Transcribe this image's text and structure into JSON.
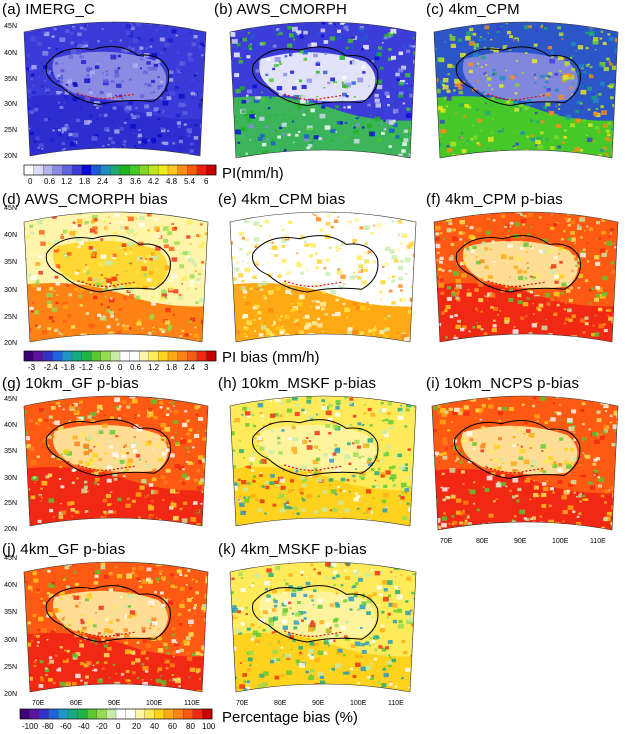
{
  "panels": [
    {
      "label": "(a) IMERG_C",
      "scheme": "pi_a"
    },
    {
      "label": "(b) AWS_CMORPH",
      "scheme": "pi_b"
    },
    {
      "label": "(c) 4km_CPM",
      "scheme": "pi_c"
    },
    {
      "label": "(d) AWS_CMORPH bias",
      "scheme": "bias_d"
    },
    {
      "label": "(e) 4km_CPM bias",
      "scheme": "bias_e"
    },
    {
      "label": "(f) 4km_CPM p-bias",
      "scheme": "pbias_red"
    },
    {
      "label": "(g) 10km_GF p-bias",
      "scheme": "pbias_red"
    },
    {
      "label": "(h) 10km_MSKF p-bias",
      "scheme": "pbias_mix"
    },
    {
      "label": "(i) 10km_NCPS p-bias",
      "scheme": "pbias_red"
    },
    {
      "label": "(j) 4km_GF p-bias",
      "scheme": "pbias_red"
    },
    {
      "label": "(k) 4km_MSKF p-bias",
      "scheme": "pbias_mix"
    }
  ],
  "lat_ticks": [
    "45N",
    "40N",
    "35N",
    "30N",
    "25N",
    "20N"
  ],
  "lon_ticks": [
    "70E",
    "80E",
    "90E",
    "100E",
    "110E"
  ],
  "colorbars": {
    "pi": {
      "title": "PI(mm/h)",
      "ticks": [
        "0",
        "0.6",
        "1.2",
        "1.8",
        "2.4",
        "3",
        "3.6",
        "4.2",
        "4.8",
        "5.4",
        "6"
      ],
      "colors": [
        "#ffffff",
        "#dcdcf5",
        "#b4b4ee",
        "#8c8ce8",
        "#6464e0",
        "#3c3cd8",
        "#0a0ad2",
        "#1e5ad2",
        "#1e8cbe",
        "#1eaa6e",
        "#1eb41e",
        "#46c828",
        "#82d728",
        "#bee61e",
        "#f0eb1e",
        "#ffc81e",
        "#ff8c14",
        "#ff5a0a",
        "#f01e0a",
        "#c80000"
      ]
    },
    "pi_bias": {
      "title": "PI bias (mm/h)",
      "ticks": [
        "-3",
        "-2.4",
        "-1.8",
        "-1.2",
        "-0.6",
        "0",
        "0.6",
        "1.2",
        "1.8",
        "2.4",
        "3"
      ],
      "colors": [
        "#3c0078",
        "#5a14a0",
        "#3232c8",
        "#1e64dc",
        "#1e96c8",
        "#14aa82",
        "#1eb446",
        "#5ac832",
        "#96dc50",
        "#c8ebaa",
        "#ffffff",
        "#ffffff",
        "#fff5aa",
        "#ffeb5a",
        "#ffd21e",
        "#ffaa14",
        "#ff8214",
        "#ff5a14",
        "#f02814",
        "#c80000"
      ]
    },
    "pbias": {
      "title": "Percentage bias (%)",
      "ticks": [
        "-100",
        "-80",
        "-60",
        "-40",
        "-20",
        "0",
        "20",
        "40",
        "60",
        "80",
        "100"
      ],
      "colors": [
        "#3c0078",
        "#5a14a0",
        "#3232c8",
        "#1e64dc",
        "#1e96c8",
        "#14aa82",
        "#1eb446",
        "#5ac832",
        "#96dc50",
        "#c8ebaa",
        "#ffffff",
        "#ffffff",
        "#fff5aa",
        "#ffeb5a",
        "#ffd21e",
        "#ffaa14",
        "#ff8214",
        "#ff5a14",
        "#f02814",
        "#c80000"
      ]
    }
  }
}
